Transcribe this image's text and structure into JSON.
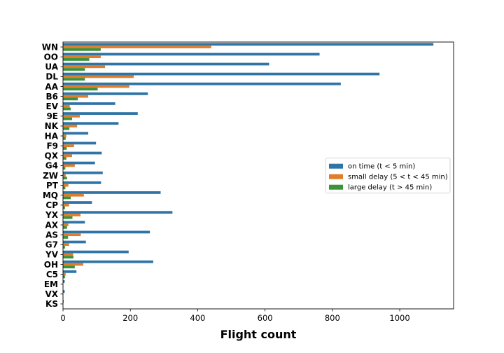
{
  "chart_data": {
    "type": "bar",
    "orientation": "horizontal",
    "xlabel": "Flight count",
    "ylabel": "",
    "xlim": [
      0,
      1160
    ],
    "xticks": [
      0,
      200,
      400,
      600,
      800,
      1000
    ],
    "grid": false,
    "legend_position": "center-right",
    "categories": [
      "WN",
      "OO",
      "UA",
      "DL",
      "AA",
      "B6",
      "EV",
      "9E",
      "NK",
      "HA",
      "F9",
      "QX",
      "G4",
      "ZW",
      "PT",
      "MQ",
      "CP",
      "YX",
      "AX",
      "AS",
      "G7",
      "YV",
      "OH",
      "C5",
      "EM",
      "VX",
      "KS"
    ],
    "series": [
      {
        "name": "on time (t < 5 min)",
        "color": "#2f74a6",
        "values": [
          1100,
          762,
          612,
          940,
          825,
          252,
          155,
          222,
          165,
          75,
          98,
          115,
          95,
          118,
          113,
          290,
          86,
          325,
          65,
          258,
          68,
          195,
          268,
          40,
          5,
          5,
          2
        ]
      },
      {
        "name": "small delay (5 < t < 45 min)",
        "color": "#e07d2a",
        "values": [
          440,
          112,
          125,
          210,
          197,
          75,
          20,
          50,
          42,
          10,
          33,
          27,
          35,
          8,
          16,
          62,
          18,
          52,
          16,
          53,
          18,
          30,
          60,
          8,
          1,
          1,
          0
        ]
      },
      {
        "name": "large delay (t > 45 min)",
        "color": "#3a923a",
        "values": [
          112,
          78,
          65,
          65,
          103,
          44,
          23,
          27,
          19,
          8,
          11,
          10,
          7,
          12,
          7,
          23,
          6,
          28,
          12,
          15,
          6,
          31,
          35,
          6,
          1,
          1,
          0
        ]
      }
    ]
  }
}
